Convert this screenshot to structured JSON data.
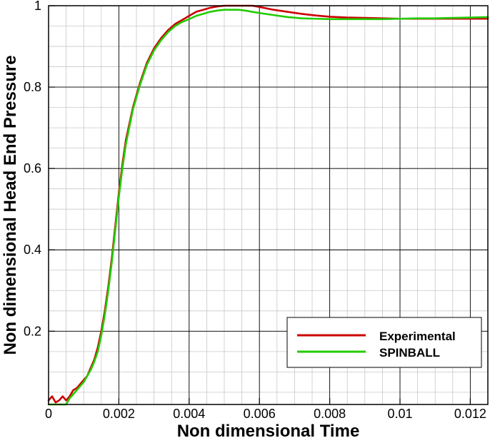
{
  "chart_data": {
    "type": "line",
    "title": "",
    "xlabel": "Non dimensional Time",
    "ylabel": "Non dimensional Head End Pressure",
    "xlim": [
      0,
      0.0125
    ],
    "ylim": [
      0.02,
      1.0
    ],
    "grid": true,
    "legend_position": "bottom-right",
    "x_ticks": [
      {
        "value": 0,
        "label": "0"
      },
      {
        "value": 0.002,
        "label": "0.002"
      },
      {
        "value": 0.004,
        "label": "0.004"
      },
      {
        "value": 0.006,
        "label": "0.006"
      },
      {
        "value": 0.008,
        "label": "0.008"
      },
      {
        "value": 0.01,
        "label": "0.01"
      },
      {
        "value": 0.012,
        "label": "0.012"
      }
    ],
    "y_ticks": [
      {
        "value": 0.2,
        "label": "0.2"
      },
      {
        "value": 0.4,
        "label": "0.4"
      },
      {
        "value": 0.6,
        "label": "0.6"
      },
      {
        "value": 0.8,
        "label": "0.8"
      },
      {
        "value": 1.0,
        "label": "1"
      }
    ],
    "series": [
      {
        "name": "Experimental",
        "color": "#cc0000",
        "x": [
          0,
          0.0001,
          0.0002,
          0.0003,
          0.0004,
          0.0005,
          0.0006,
          0.0007,
          0.0008,
          0.0009,
          0.001,
          0.0011,
          0.0012,
          0.0013,
          0.0014,
          0.0015,
          0.0016,
          0.0017,
          0.0018,
          0.0019,
          0.002,
          0.0021,
          0.0022,
          0.0024,
          0.0026,
          0.0028,
          0.003,
          0.0032,
          0.0034,
          0.0036,
          0.0038,
          0.004,
          0.0042,
          0.0044,
          0.0046,
          0.0048,
          0.005,
          0.0052,
          0.0054,
          0.0056,
          0.0058,
          0.006,
          0.0064,
          0.0068,
          0.0072,
          0.0076,
          0.008,
          0.0085,
          0.009,
          0.0095,
          0.01,
          0.0105,
          0.011,
          0.0115,
          0.012,
          0.0125
        ],
        "y": [
          0.03,
          0.04,
          0.025,
          0.03,
          0.04,
          0.03,
          0.04,
          0.055,
          0.06,
          0.07,
          0.08,
          0.09,
          0.11,
          0.13,
          0.16,
          0.2,
          0.25,
          0.31,
          0.38,
          0.46,
          0.54,
          0.61,
          0.67,
          0.75,
          0.81,
          0.86,
          0.895,
          0.92,
          0.94,
          0.955,
          0.965,
          0.975,
          0.985,
          0.99,
          0.995,
          0.998,
          1.0,
          1.0,
          1.0,
          1.0,
          1.0,
          0.997,
          0.99,
          0.985,
          0.98,
          0.976,
          0.973,
          0.971,
          0.97,
          0.969,
          0.968,
          0.968,
          0.968,
          0.968,
          0.968,
          0.968
        ]
      },
      {
        "name": "SPINBALL",
        "color": "#22cc00",
        "x": [
          0,
          0.0002,
          0.0004,
          0.0005,
          0.0006,
          0.0007,
          0.0008,
          0.0009,
          0.001,
          0.0011,
          0.0012,
          0.0013,
          0.0014,
          0.0015,
          0.0016,
          0.0017,
          0.0018,
          0.0019,
          0.002,
          0.0021,
          0.0022,
          0.0024,
          0.0026,
          0.0028,
          0.003,
          0.0032,
          0.0034,
          0.0036,
          0.0038,
          0.004,
          0.0042,
          0.0044,
          0.0046,
          0.0048,
          0.005,
          0.0052,
          0.0054,
          0.0056,
          0.0058,
          0.006,
          0.0064,
          0.0068,
          0.0072,
          0.0076,
          0.008,
          0.0085,
          0.009,
          0.0095,
          0.01,
          0.0105,
          0.011,
          0.0115,
          0.012,
          0.0125
        ],
        "y": [
          0.02,
          0.02,
          0.02,
          0.02,
          0.035,
          0.045,
          0.055,
          0.065,
          0.075,
          0.09,
          0.105,
          0.125,
          0.15,
          0.19,
          0.24,
          0.3,
          0.37,
          0.45,
          0.53,
          0.6,
          0.66,
          0.745,
          0.805,
          0.855,
          0.89,
          0.915,
          0.935,
          0.95,
          0.96,
          0.967,
          0.975,
          0.98,
          0.985,
          0.988,
          0.99,
          0.99,
          0.99,
          0.988,
          0.985,
          0.982,
          0.977,
          0.972,
          0.969,
          0.968,
          0.967,
          0.967,
          0.967,
          0.967,
          0.968,
          0.969,
          0.969,
          0.97,
          0.971,
          0.972
        ]
      }
    ]
  }
}
